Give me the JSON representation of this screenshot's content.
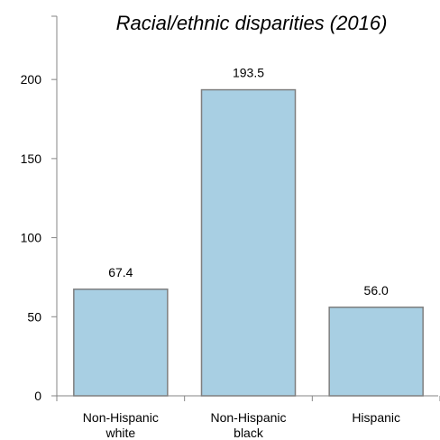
{
  "chart_data": {
    "type": "bar",
    "title": "Racial/ethnic disparities (2016)",
    "categories": [
      [
        "Non-Hispanic",
        "white"
      ],
      [
        "Non-Hispanic",
        "black"
      ],
      [
        "Hispanic"
      ]
    ],
    "values": [
      67.4,
      193.5,
      56.0
    ],
    "data_labels": [
      "67.4",
      "193.5",
      "56.0"
    ],
    "ylim": [
      0,
      240
    ],
    "yticks": [
      0,
      50,
      100,
      150,
      200
    ],
    "grid": false,
    "legend": "none",
    "colors": {
      "bar_fill": "#a8cfe3",
      "bar_stroke": "#7f7f7f",
      "axis": "#868686"
    }
  }
}
